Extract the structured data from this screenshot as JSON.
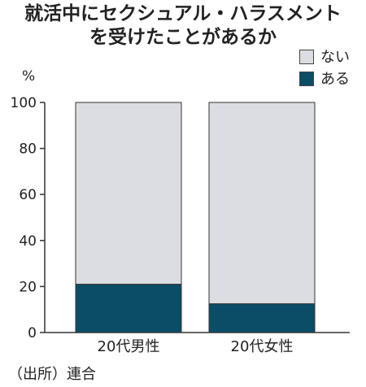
{
  "title_lines": [
    "就活中にセクシュアル・ハラスメント",
    "を受けたことがあるか"
  ],
  "unit": "%",
  "source": "（出所）連合",
  "colors": {
    "ない": "#dcdce3",
    "ある": "#0b4d66",
    "stroke": "#333333"
  },
  "chart_data": {
    "type": "bar",
    "stacked": true,
    "categories": [
      "20代男性",
      "20代女性"
    ],
    "series": [
      {
        "name": "ある",
        "values": [
          21,
          12.5
        ]
      },
      {
        "name": "ない",
        "values": [
          79,
          87.5
        ]
      }
    ],
    "ylim": [
      0,
      100
    ],
    "yticks": [
      0,
      20,
      40,
      60,
      80,
      100
    ],
    "legend": [
      "ない",
      "ある"
    ],
    "legend_position": "top-right",
    "grid": false
  }
}
